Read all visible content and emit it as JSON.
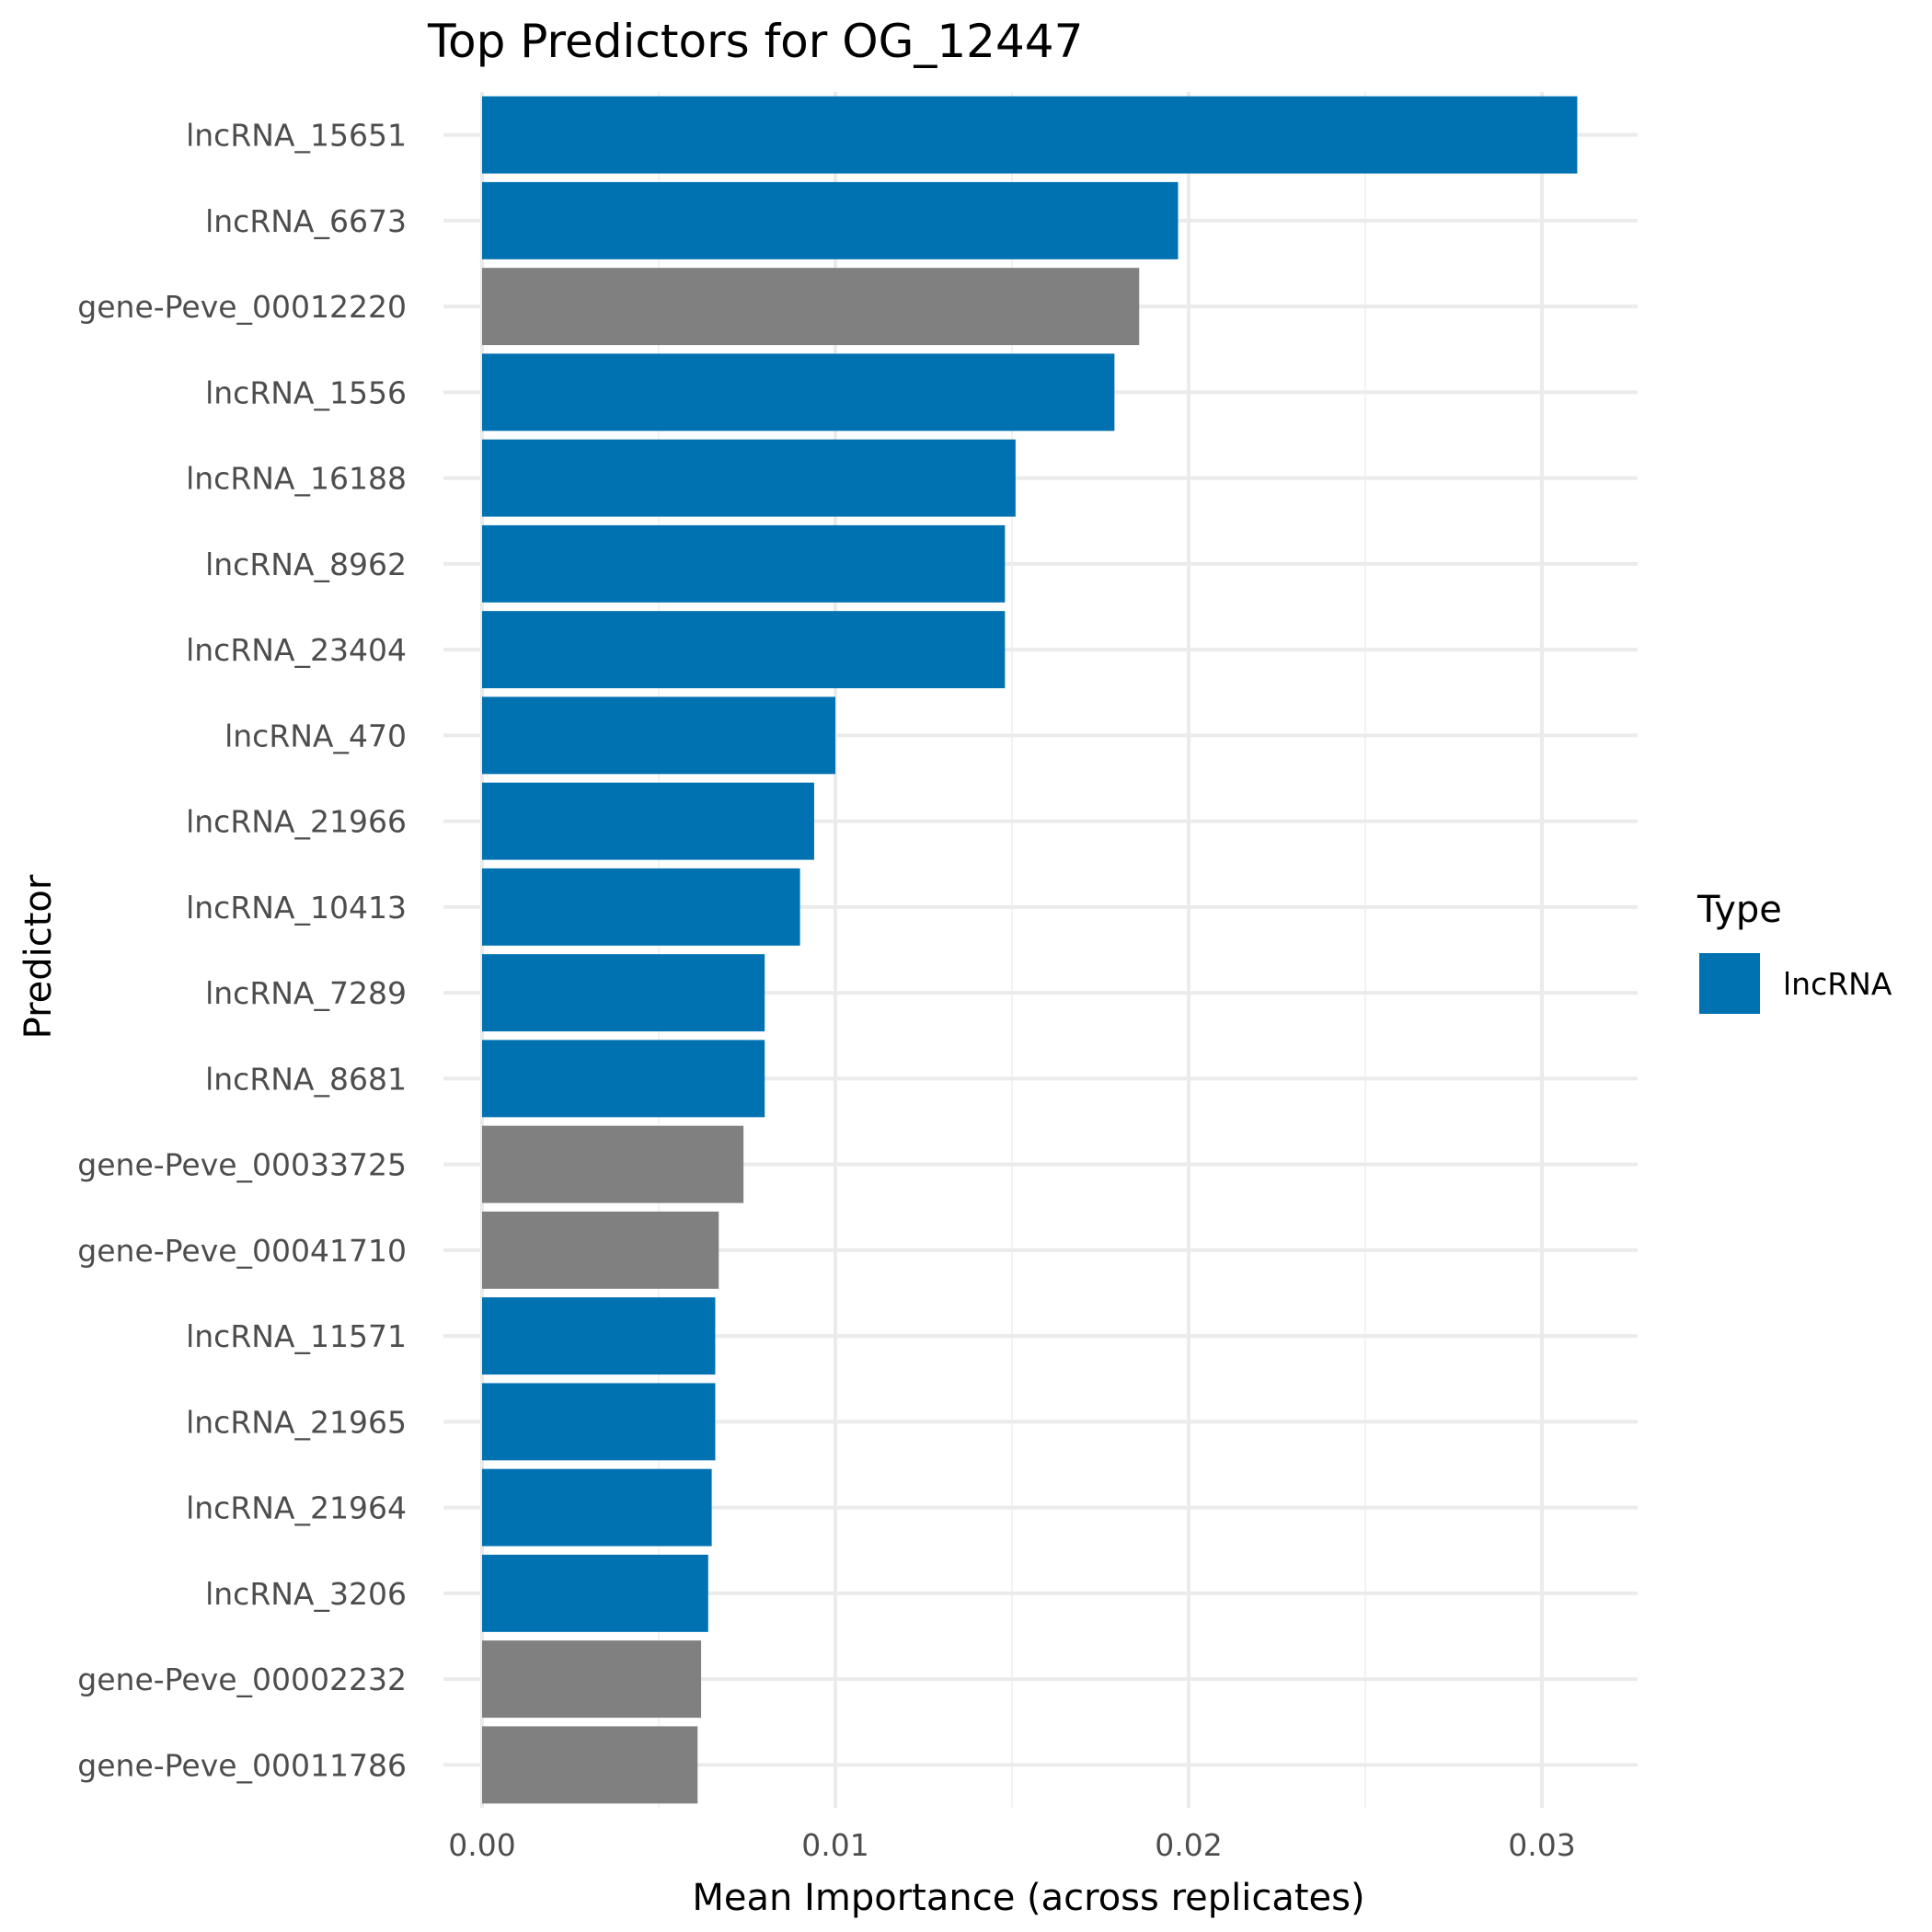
{
  "chart_data": {
    "type": "bar",
    "orientation": "horizontal",
    "title": "Top Predictors for OG_12447",
    "xlabel": "Mean Importance (across replicates)",
    "ylabel": "Predictor",
    "xlim": [
      0,
      0.0325
    ],
    "xticks": [
      "0.00",
      "0.01",
      "0.02",
      "0.03"
    ],
    "xtick_values": [
      0,
      0.01,
      0.02,
      0.03
    ],
    "grid": true,
    "legend": {
      "title": "Type",
      "position": "right",
      "entries": [
        {
          "label": "lncRNA",
          "color": "#0072B2"
        }
      ]
    },
    "colors": {
      "lncRNA": "#0072B2",
      "gene": "#808080"
    },
    "bars": [
      {
        "label": "lncRNA_15651",
        "value": 0.031,
        "type": "lncRNA"
      },
      {
        "label": "lncRNA_6673",
        "value": 0.0197,
        "type": "lncRNA"
      },
      {
        "label": "gene-Peve_00012220",
        "value": 0.0186,
        "type": "gene"
      },
      {
        "label": "lncRNA_1556",
        "value": 0.0179,
        "type": "lncRNA"
      },
      {
        "label": "lncRNA_16188",
        "value": 0.0151,
        "type": "lncRNA"
      },
      {
        "label": "lncRNA_8962",
        "value": 0.0148,
        "type": "lncRNA"
      },
      {
        "label": "lncRNA_23404",
        "value": 0.0148,
        "type": "lncRNA"
      },
      {
        "label": "lncRNA_470",
        "value": 0.01,
        "type": "lncRNA"
      },
      {
        "label": "lncRNA_21966",
        "value": 0.0094,
        "type": "lncRNA"
      },
      {
        "label": "lncRNA_10413",
        "value": 0.009,
        "type": "lncRNA"
      },
      {
        "label": "lncRNA_7289",
        "value": 0.008,
        "type": "lncRNA"
      },
      {
        "label": "lncRNA_8681",
        "value": 0.008,
        "type": "lncRNA"
      },
      {
        "label": "gene-Peve_00033725",
        "value": 0.0074,
        "type": "gene"
      },
      {
        "label": "gene-Peve_00041710",
        "value": 0.0067,
        "type": "gene"
      },
      {
        "label": "lncRNA_11571",
        "value": 0.0066,
        "type": "lncRNA"
      },
      {
        "label": "lncRNA_21965",
        "value": 0.0066,
        "type": "lncRNA"
      },
      {
        "label": "lncRNA_21964",
        "value": 0.0065,
        "type": "lncRNA"
      },
      {
        "label": "lncRNA_3206",
        "value": 0.0064,
        "type": "lncRNA"
      },
      {
        "label": "gene-Peve_00002232",
        "value": 0.0062,
        "type": "gene"
      },
      {
        "label": "gene-Peve_00011786",
        "value": 0.0061,
        "type": "gene"
      }
    ]
  }
}
